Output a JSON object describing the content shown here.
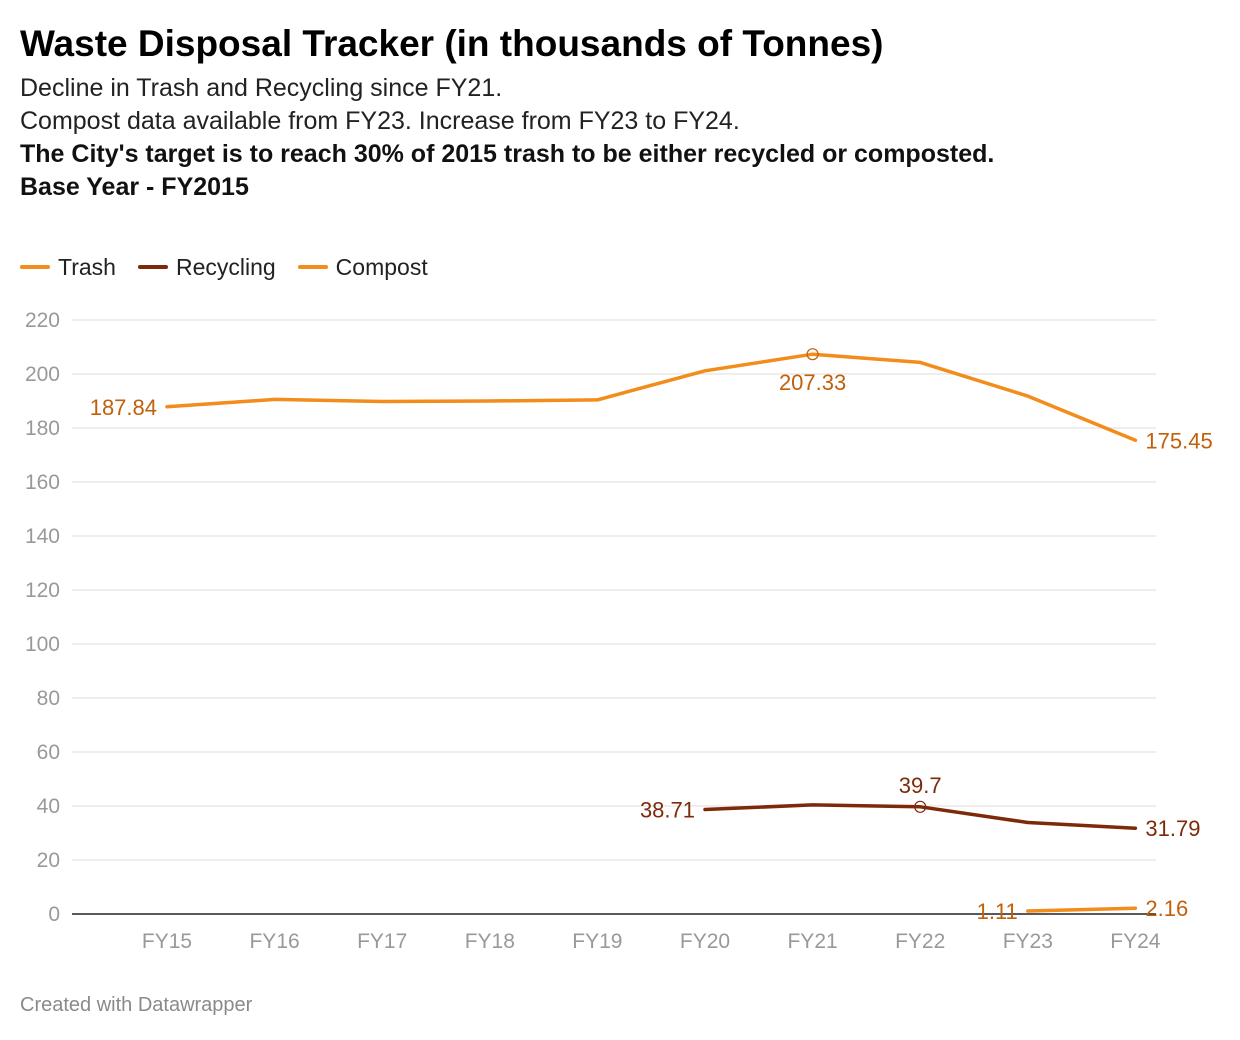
{
  "header": {
    "title": "Waste Disposal Tracker (in thousands of Tonnes)",
    "line1": "Decline in Trash and Recycling since FY21.",
    "line2": "Compost data available from FY23. Increase from FY23 to FY24.",
    "line3": "The City's target is to reach 30% of 2015 trash to be either recycled or composted.",
    "line4": "Base Year - FY2015"
  },
  "footer": {
    "credit": "Created with Datawrapper"
  },
  "colors": {
    "trash": "#f28c1a",
    "recycling": "#7d2a0a",
    "compost": "#f28c1a",
    "trash_label": "#c2600a",
    "recycling_label": "#7d2a0a",
    "compost_label": "#c2600a",
    "grid": "#dddddd",
    "axis_text": "#999999"
  },
  "chart_data": {
    "type": "line",
    "title": "Waste Disposal Tracker (in thousands of Tonnes)",
    "xlabel": "",
    "ylabel": "",
    "categories": [
      "FY15",
      "FY16",
      "FY17",
      "FY18",
      "FY19",
      "FY20",
      "FY21",
      "FY22",
      "FY23",
      "FY24"
    ],
    "ylim": [
      0,
      220
    ],
    "yticks": [
      0,
      20,
      40,
      60,
      80,
      100,
      120,
      140,
      160,
      180,
      200,
      220
    ],
    "grid": true,
    "legend_position": "top-left",
    "series": [
      {
        "name": "Trash",
        "key": "trash",
        "values": [
          187.84,
          190.6,
          189.8,
          190.0,
          190.4,
          201.2,
          207.33,
          204.3,
          191.8,
          175.45
        ],
        "labels": [
          {
            "index": 0,
            "text": "187.84",
            "position": "left"
          },
          {
            "index": 6,
            "text": "207.33",
            "position": "below",
            "marker": true
          },
          {
            "index": 9,
            "text": "175.45",
            "position": "right"
          }
        ]
      },
      {
        "name": "Recycling",
        "key": "recycling",
        "values": [
          null,
          null,
          null,
          null,
          null,
          38.71,
          40.4,
          39.7,
          33.9,
          31.79
        ],
        "labels": [
          {
            "index": 5,
            "text": "38.71",
            "position": "left"
          },
          {
            "index": 7,
            "text": "39.7",
            "position": "above",
            "marker": true
          },
          {
            "index": 9,
            "text": "31.79",
            "position": "right"
          }
        ]
      },
      {
        "name": "Compost",
        "key": "compost",
        "values": [
          null,
          null,
          null,
          null,
          null,
          null,
          null,
          null,
          1.11,
          2.16
        ],
        "labels": [
          {
            "index": 8,
            "text": "1.11",
            "position": "left"
          },
          {
            "index": 9,
            "text": "2.16",
            "position": "right"
          }
        ]
      }
    ]
  }
}
